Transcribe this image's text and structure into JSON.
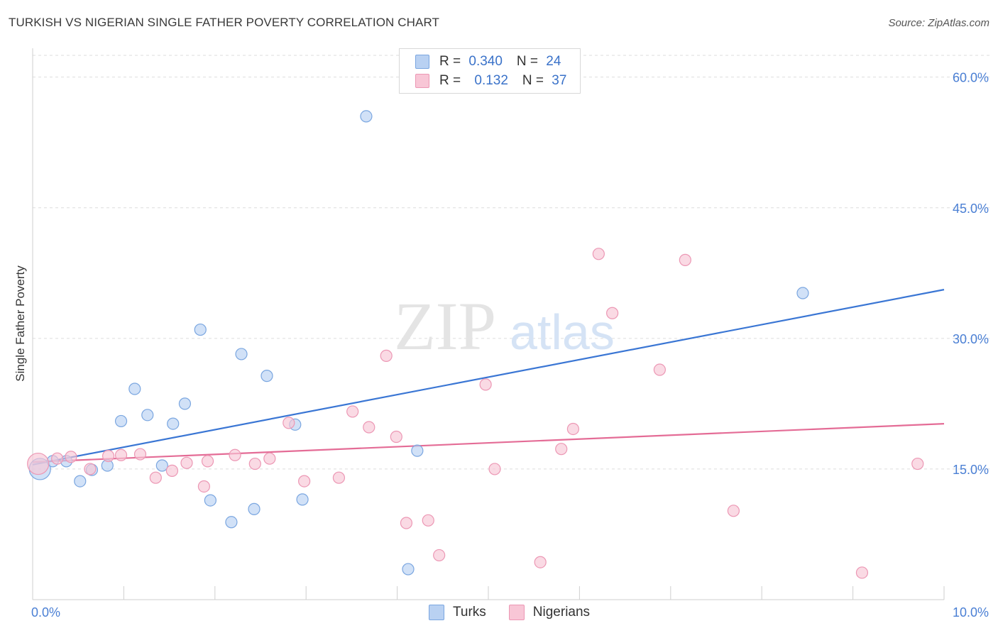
{
  "title": "TURKISH VS NIGERIAN SINGLE FATHER POVERTY CORRELATION CHART",
  "source": "Source: ZipAtlas.com",
  "watermark": {
    "zip": "ZIP",
    "atlas": "atlas"
  },
  "colors": {
    "turks_fill": "#b9d1f2",
    "turks_stroke": "#7aa6e0",
    "turks_line": "#3a76d4",
    "nigerians_fill": "#f8c6d6",
    "nigerians_stroke": "#ec97b4",
    "nigerians_line": "#e46c96",
    "tick_text": "#4a7fd4",
    "grid": "#dddddd"
  },
  "legend": {
    "turks": {
      "r_label": "R = ",
      "r_value": "0.340",
      "n_label": "N = ",
      "n_value": "24"
    },
    "nigerians": {
      "r_label": "R = ",
      "r_value": "0.132",
      "n_label": "N = ",
      "n_value": "37"
    }
  },
  "bottom_legend": {
    "turks": "Turks",
    "nigerians": "Nigerians"
  },
  "chart_data": {
    "type": "scatter",
    "title": "TURKISH VS NIGERIAN SINGLE FATHER POVERTY CORRELATION CHART",
    "xlabel": "",
    "ylabel": "Single Father Poverty",
    "xlim": [
      0,
      10
    ],
    "ylim": [
      0,
      62.5
    ],
    "x_tick_labels": [
      "0.0%",
      "10.0%"
    ],
    "y_ticks": [
      15,
      30,
      45,
      60
    ],
    "y_tick_labels": [
      "15.0%",
      "30.0%",
      "45.0%",
      "60.0%"
    ],
    "grid": true,
    "legend_position": "top-center",
    "series": [
      {
        "name": "Turks",
        "trend": {
          "x": [
            0,
            10
          ],
          "y": [
            15.5,
            35.6
          ]
        },
        "points": [
          {
            "x": 0.08,
            "y": 15.0,
            "big": true
          },
          {
            "x": 0.22,
            "y": 15.9
          },
          {
            "x": 0.37,
            "y": 15.9
          },
          {
            "x": 0.52,
            "y": 13.6
          },
          {
            "x": 0.65,
            "y": 14.9
          },
          {
            "x": 0.82,
            "y": 15.4
          },
          {
            "x": 0.97,
            "y": 20.5
          },
          {
            "x": 1.12,
            "y": 24.2
          },
          {
            "x": 1.26,
            "y": 21.2
          },
          {
            "x": 1.42,
            "y": 15.4
          },
          {
            "x": 1.54,
            "y": 20.2
          },
          {
            "x": 1.67,
            "y": 22.5
          },
          {
            "x": 1.84,
            "y": 31.0
          },
          {
            "x": 1.95,
            "y": 11.4
          },
          {
            "x": 2.18,
            "y": 8.9
          },
          {
            "x": 2.29,
            "y": 28.2
          },
          {
            "x": 2.43,
            "y": 10.4
          },
          {
            "x": 2.57,
            "y": 25.7
          },
          {
            "x": 2.88,
            "y": 20.1
          },
          {
            "x": 2.96,
            "y": 11.5
          },
          {
            "x": 3.66,
            "y": 55.5
          },
          {
            "x": 4.12,
            "y": 3.5
          },
          {
            "x": 4.22,
            "y": 17.1
          },
          {
            "x": 8.45,
            "y": 35.2
          }
        ]
      },
      {
        "name": "Nigerians",
        "trend": {
          "x": [
            0,
            10
          ],
          "y": [
            15.8,
            20.2
          ]
        },
        "points": [
          {
            "x": 0.06,
            "y": 15.6,
            "big": true
          },
          {
            "x": 0.27,
            "y": 16.2
          },
          {
            "x": 0.42,
            "y": 16.4
          },
          {
            "x": 0.63,
            "y": 15.0
          },
          {
            "x": 0.83,
            "y": 16.5
          },
          {
            "x": 0.97,
            "y": 16.6
          },
          {
            "x": 1.18,
            "y": 16.7
          },
          {
            "x": 1.35,
            "y": 14.0
          },
          {
            "x": 1.53,
            "y": 14.8
          },
          {
            "x": 1.69,
            "y": 15.7
          },
          {
            "x": 1.88,
            "y": 13.0
          },
          {
            "x": 1.92,
            "y": 15.9
          },
          {
            "x": 2.22,
            "y": 16.6
          },
          {
            "x": 2.44,
            "y": 15.6
          },
          {
            "x": 2.6,
            "y": 16.2
          },
          {
            "x": 2.81,
            "y": 20.3
          },
          {
            "x": 2.98,
            "y": 13.6
          },
          {
            "x": 3.36,
            "y": 14.0
          },
          {
            "x": 3.51,
            "y": 21.6
          },
          {
            "x": 3.69,
            "y": 19.8
          },
          {
            "x": 3.88,
            "y": 28.0
          },
          {
            "x": 3.99,
            "y": 18.7
          },
          {
            "x": 4.1,
            "y": 8.8
          },
          {
            "x": 4.34,
            "y": 9.1
          },
          {
            "x": 4.46,
            "y": 5.1
          },
          {
            "x": 4.97,
            "y": 24.7
          },
          {
            "x": 5.07,
            "y": 15.0
          },
          {
            "x": 5.57,
            "y": 4.3
          },
          {
            "x": 5.8,
            "y": 17.3
          },
          {
            "x": 5.93,
            "y": 19.6
          },
          {
            "x": 6.21,
            "y": 39.7
          },
          {
            "x": 6.36,
            "y": 32.9
          },
          {
            "x": 6.88,
            "y": 26.4
          },
          {
            "x": 7.16,
            "y": 39.0
          },
          {
            "x": 7.69,
            "y": 10.2
          },
          {
            "x": 9.1,
            "y": 3.1
          },
          {
            "x": 9.71,
            "y": 15.6
          }
        ]
      }
    ]
  }
}
